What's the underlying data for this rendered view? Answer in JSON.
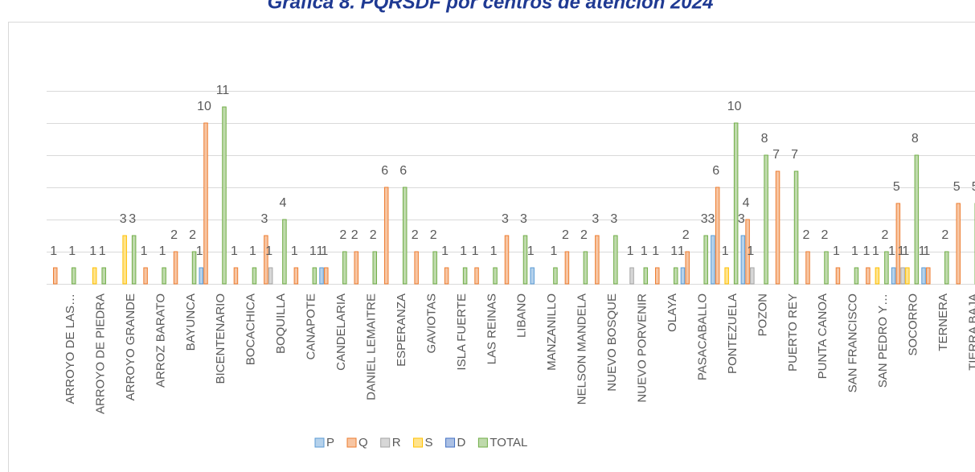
{
  "chart_data": {
    "type": "bar",
    "title": "Gráfica 8. PQRSDF por centros de atención 2024",
    "categories": [
      "ARROYO DE LAS…",
      "ARROYO DE PIEDRA",
      "ARROYO GRANDE",
      "ARROZ BARATO",
      "BAYUNCA",
      "BICENTENARIO",
      "BOCACHICA",
      "BOQUILLA",
      "CANAPOTE",
      "CANDELARIA",
      "DANIEL LEMAITRE",
      "ESPERANZA",
      "GAVIOTAS",
      "ISLA FUERTE",
      "LAS REINAS",
      "LIBANO",
      "MANZANILLO",
      "NELSON MANDELA",
      "NUEVO BOSQUE",
      "NUEVO PORVENIR",
      "OLAYA",
      "PASACABALLO",
      "PONTEZUELA",
      "POZON",
      "PUERTO REY",
      "PUNTA CANOA",
      "SAN FRANCISCO",
      "SAN PEDRO Y…",
      "SOCORRO",
      "TERNERA",
      "TIERRA BAJA"
    ],
    "series": [
      {
        "name": "P",
        "color": "#5b9bd5",
        "values": [
          0,
          0,
          0,
          0,
          0,
          1,
          0,
          0,
          0,
          1,
          0,
          0,
          0,
          0,
          0,
          0,
          1,
          0,
          0,
          0,
          0,
          1,
          3,
          3,
          0,
          0,
          0,
          0,
          1,
          1,
          0
        ]
      },
      {
        "name": "Q",
        "color": "#ed7d31",
        "values": [
          1,
          0,
          0,
          1,
          2,
          10,
          1,
          3,
          1,
          1,
          2,
          6,
          2,
          1,
          1,
          3,
          0,
          2,
          3,
          0,
          1,
          2,
          6,
          4,
          7,
          2,
          1,
          1,
          5,
          1,
          5
        ]
      },
      {
        "name": "R",
        "color": "#a5a5a5",
        "values": [
          0,
          0,
          0,
          0,
          0,
          0,
          0,
          1,
          0,
          0,
          0,
          0,
          0,
          0,
          0,
          0,
          0,
          0,
          0,
          1,
          0,
          0,
          0,
          1,
          0,
          0,
          0,
          0,
          1,
          0,
          0
        ]
      },
      {
        "name": "S",
        "color": "#ffc000",
        "values": [
          0,
          1,
          3,
          0,
          0,
          0,
          0,
          0,
          0,
          0,
          0,
          0,
          0,
          0,
          0,
          0,
          0,
          0,
          0,
          0,
          0,
          0,
          1,
          0,
          0,
          0,
          0,
          1,
          1,
          0,
          0
        ]
      },
      {
        "name": "D",
        "color": "#4472c4",
        "values": [
          0,
          0,
          0,
          0,
          0,
          0,
          0,
          0,
          0,
          0,
          0,
          0,
          0,
          0,
          0,
          0,
          0,
          0,
          0,
          0,
          0,
          0,
          0,
          0,
          0,
          0,
          0,
          0,
          0,
          0,
          0
        ]
      },
      {
        "name": "TOTAL",
        "color": "#70ad47",
        "values": [
          1,
          1,
          3,
          1,
          2,
          11,
          1,
          4,
          1,
          2,
          2,
          6,
          2,
          1,
          1,
          3,
          1,
          2,
          3,
          1,
          1,
          3,
          10,
          8,
          7,
          2,
          1,
          2,
          8,
          2,
          5
        ]
      }
    ],
    "ylim": [
      0,
      12
    ],
    "yticks": [
      0,
      2,
      4,
      6,
      8,
      10,
      12
    ],
    "grid": true,
    "legend": "bottom"
  }
}
